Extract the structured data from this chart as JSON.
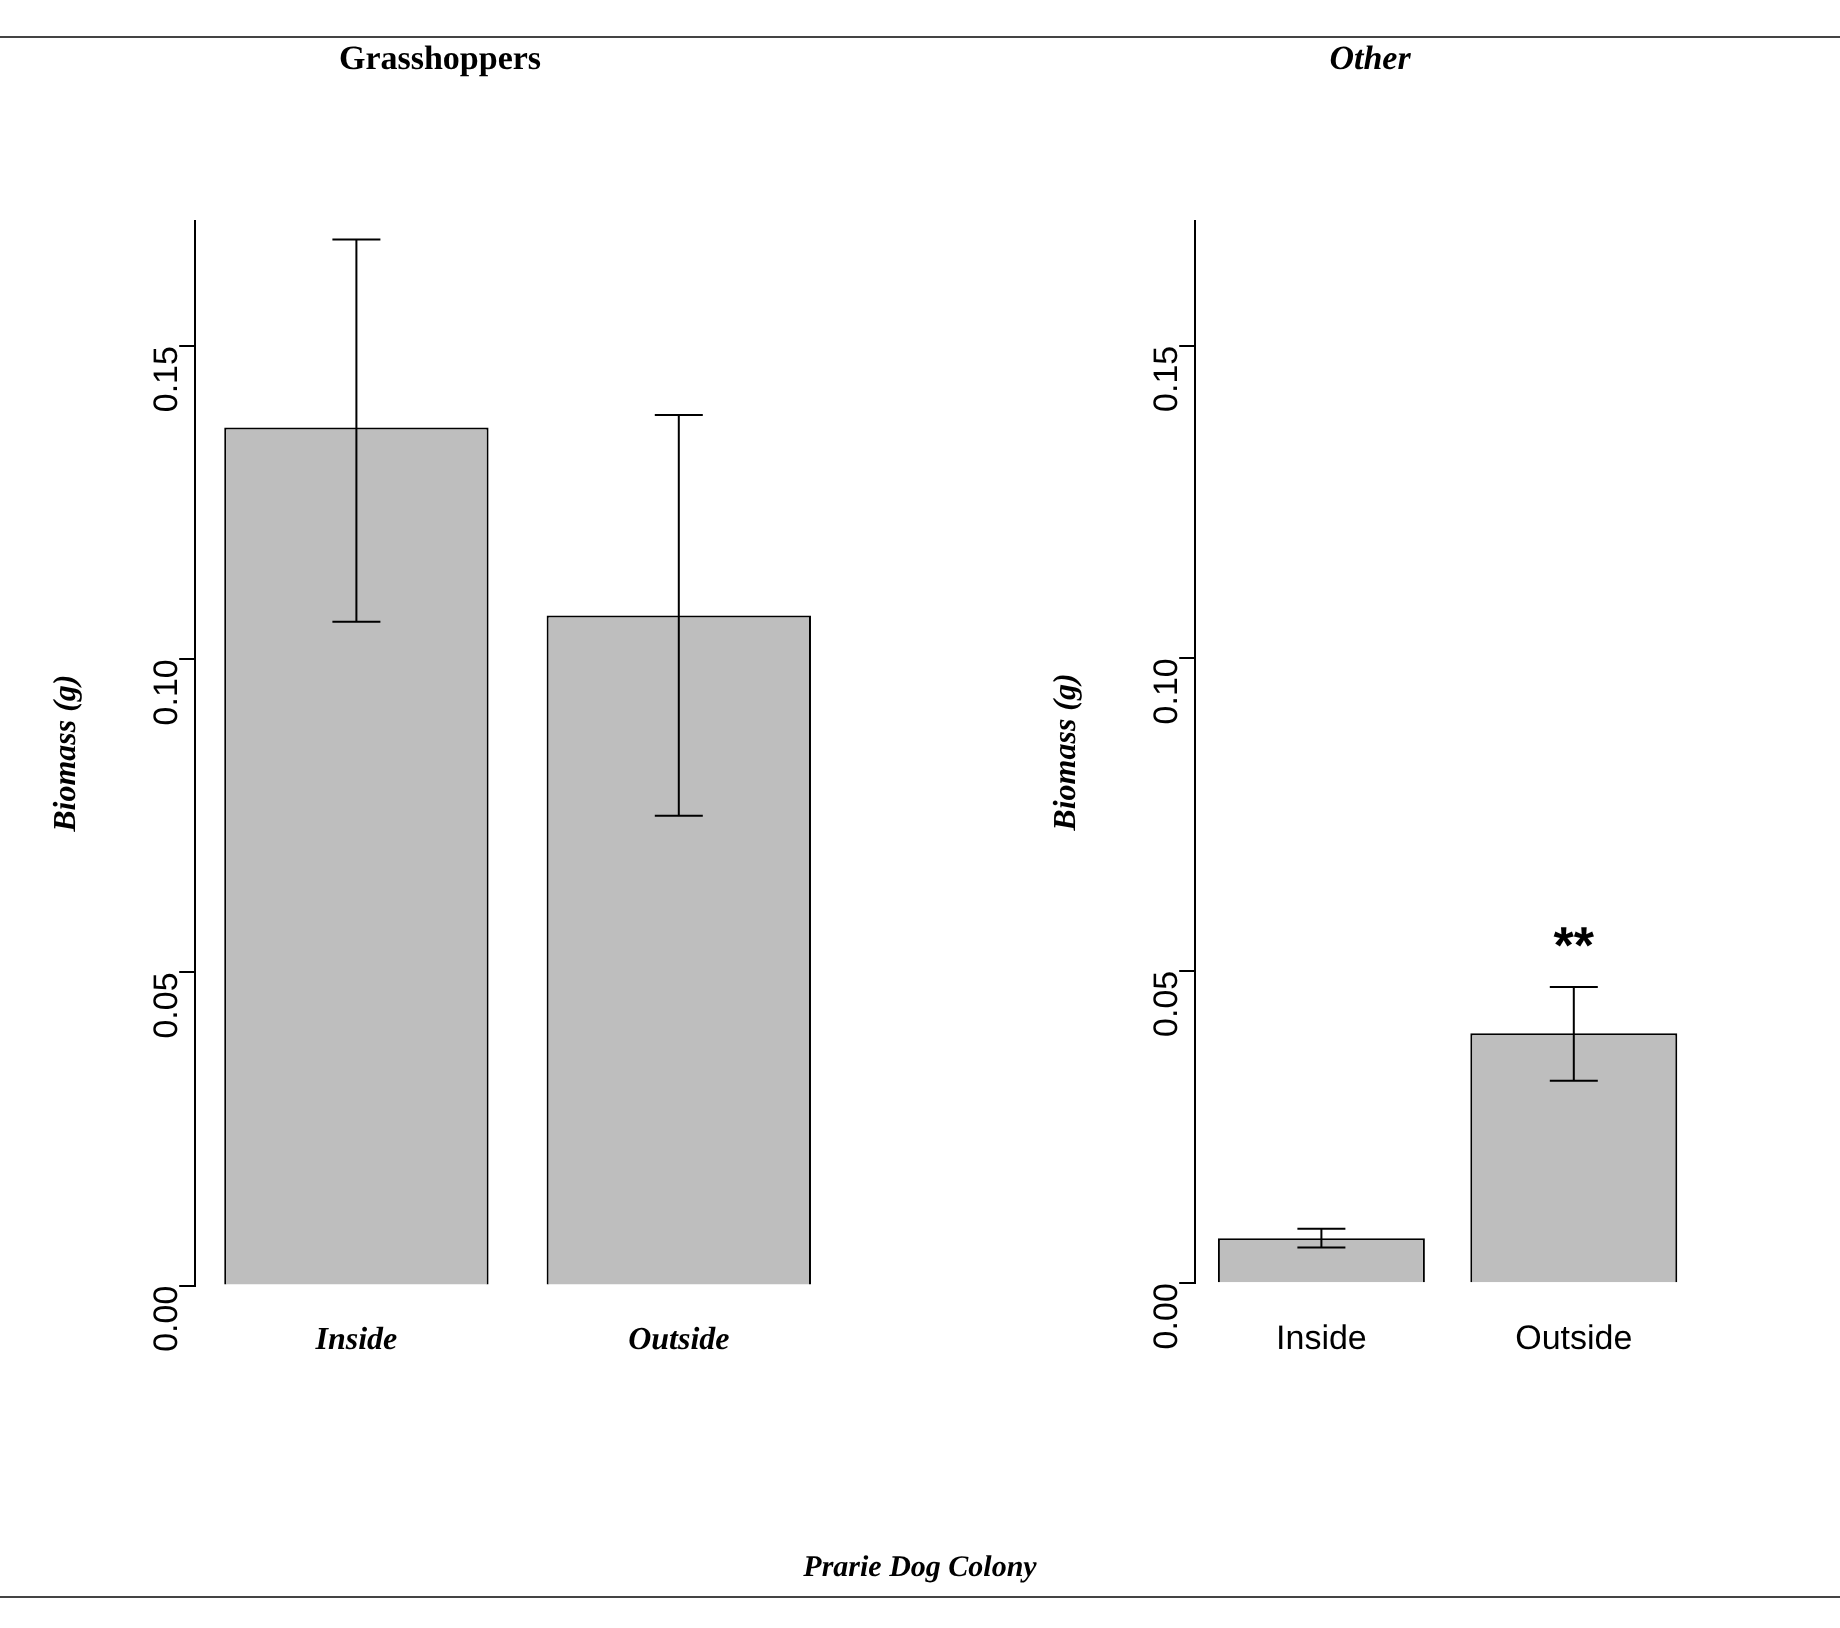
{
  "chart_data": [
    {
      "type": "bar",
      "title": "Grasshoppers",
      "ylabel": "Biomass (g)",
      "categories": [
        "Inside",
        "Outside"
      ],
      "values": [
        0.137,
        0.107
      ],
      "errors": [
        [
          0.106,
          0.167
        ],
        [
          0.075,
          0.139
        ]
      ],
      "color": "#bebebe",
      "ylim": [
        0,
        0.17
      ],
      "yticks": [
        {
          "value": 0,
          "label": "0.00"
        },
        {
          "value": 0.05,
          "label": "0.05"
        },
        {
          "value": 0.1,
          "label": "0.10"
        },
        {
          "value": 0.15,
          "label": "0.15"
        }
      ],
      "grid": false,
      "legend": false,
      "annotations": [
        "Prarie Dog Colony"
      ]
    },
    {
      "type": "bar",
      "title": "Other",
      "ylabel": "Biomass (g)",
      "categories": [
        "Inside",
        "Outside"
      ],
      "values": [
        0.0072,
        0.04
      ],
      "errors": [
        [
          0.0057,
          0.0087
        ],
        [
          0.0324,
          0.0474
        ]
      ],
      "color": "#bebebe",
      "ylim": [
        0,
        0.17
      ],
      "yticks": [
        {
          "value": 0,
          "label": "0.00"
        },
        {
          "value": 0.05,
          "label": "0.05"
        },
        {
          "value": 0.1,
          "label": "0.10"
        },
        {
          "value": 0.15,
          "label": "0.15"
        }
      ],
      "grid": false,
      "legend": false,
      "annotations": [
        {
          "text": "**",
          "x": "Outside",
          "y": 0.0474
        }
      ]
    }
  ]
}
